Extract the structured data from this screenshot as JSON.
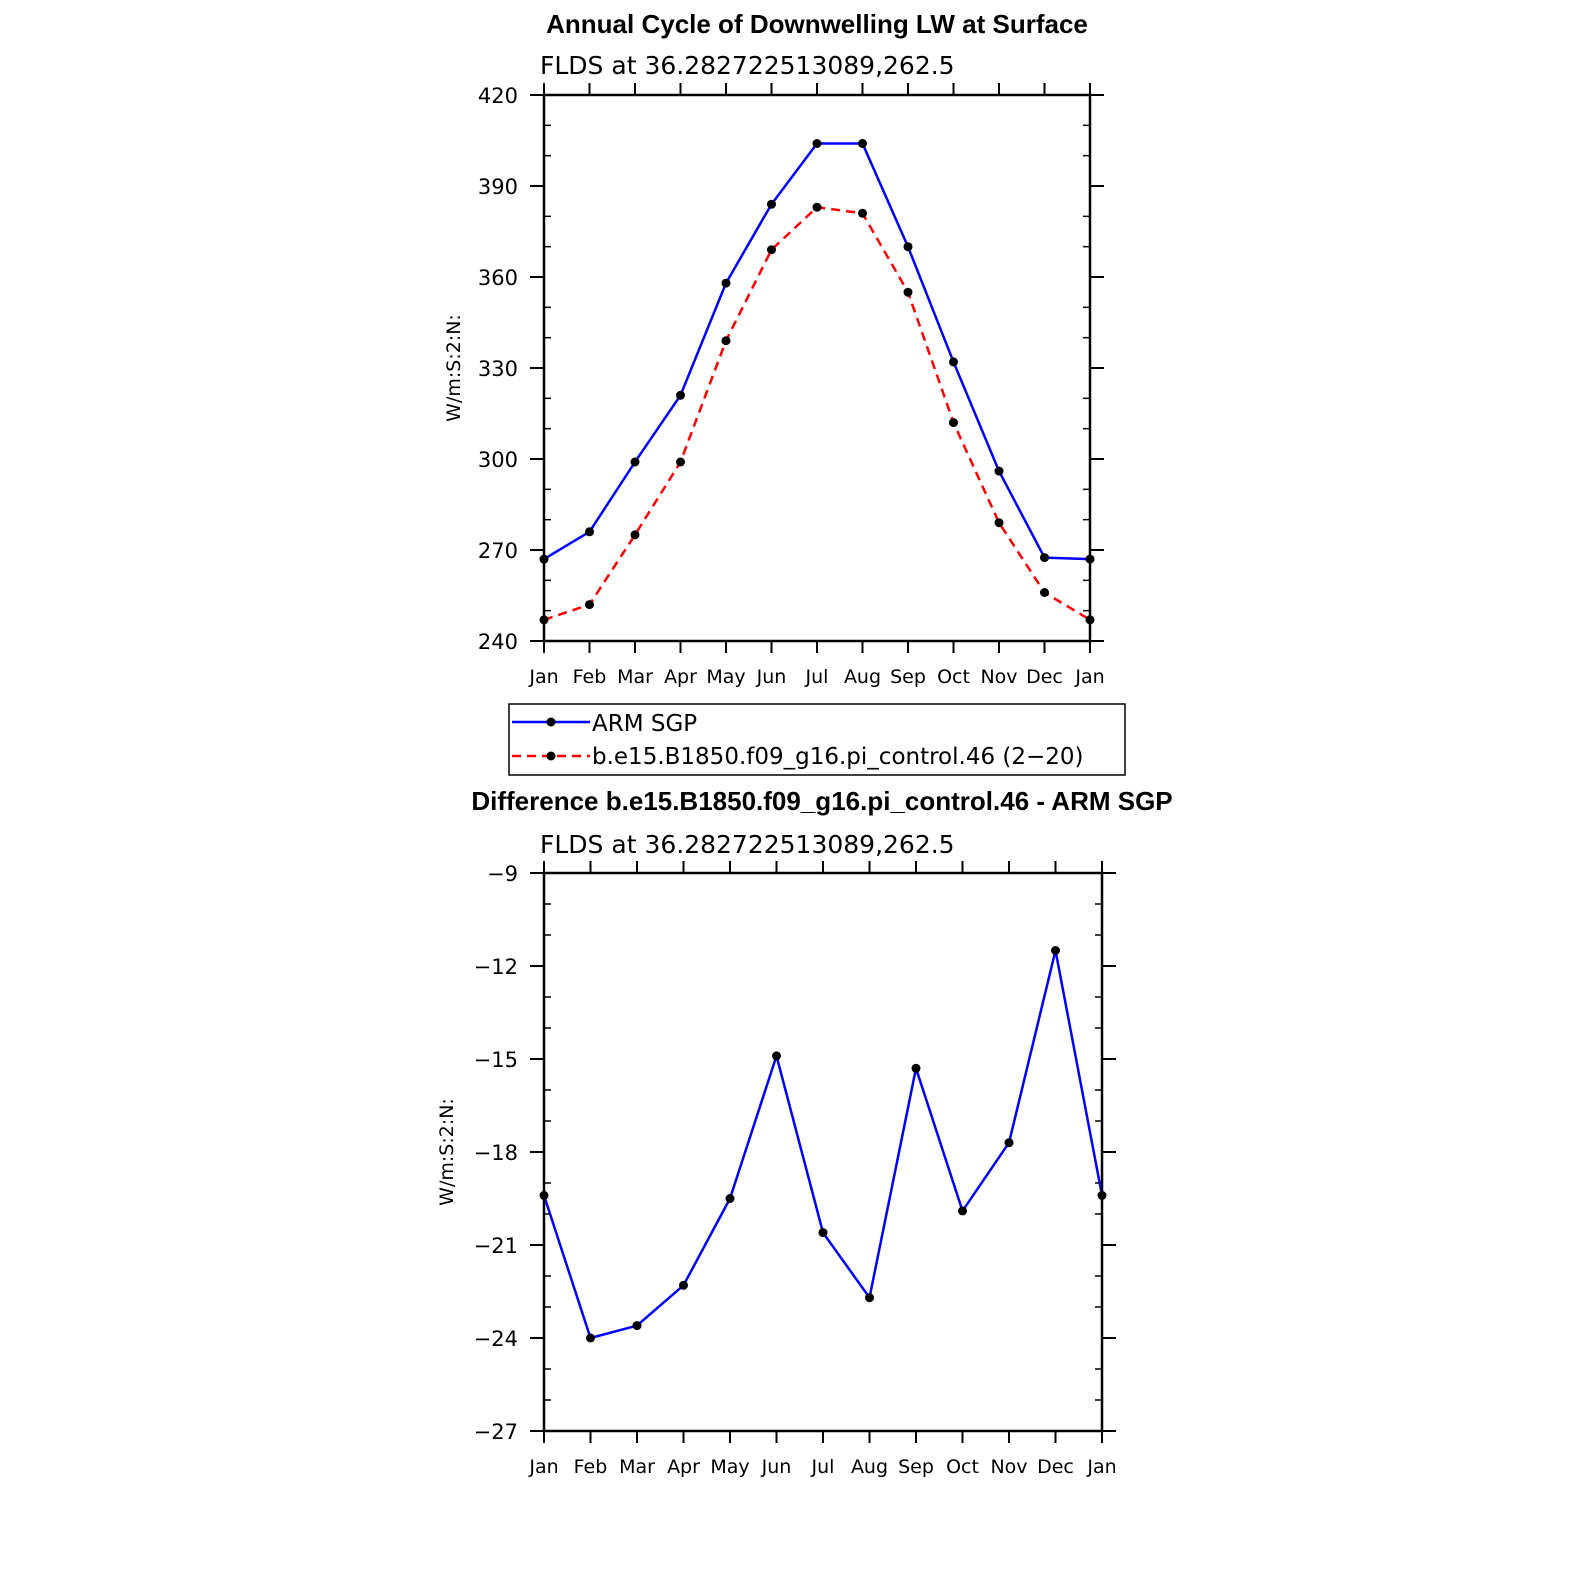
{
  "chart_data": [
    {
      "type": "line",
      "title": "Annual Cycle of Downwelling LW at Surface",
      "subtitle": "FLDS at 36.282722513089,262.5",
      "ylabel": "W/m:S:2:N:",
      "ylim": [
        240,
        420
      ],
      "yticks": [
        "240",
        "270",
        "300",
        "330",
        "360",
        "390",
        "420"
      ],
      "categories": [
        "Jan",
        "Feb",
        "Mar",
        "Apr",
        "May",
        "Jun",
        "Jul",
        "Aug",
        "Sep",
        "Oct",
        "Nov",
        "Dec",
        "Jan"
      ],
      "series": [
        {
          "name": "ARM SGP",
          "color": "#0000ff",
          "dashed": false,
          "values": [
            267,
            276,
            299,
            321,
            358,
            384,
            404,
            404,
            370,
            332,
            296,
            267.5,
            267
          ]
        },
        {
          "name": "b.e15.B1850.f09_g16.pi_control.46 (2−20)",
          "color": "#ff0000",
          "dashed": true,
          "values": [
            247,
            252,
            275,
            299,
            339,
            369,
            383,
            381,
            355,
            312,
            279,
            256,
            247
          ]
        }
      ],
      "legend": "below"
    },
    {
      "type": "line",
      "title": "Difference b.e15.B1850.f09_g16.pi_control.46 - ARM SGP",
      "subtitle": "FLDS at 36.282722513089,262.5",
      "ylabel": "W/m:S:2:N:",
      "ylim": [
        -27,
        -9
      ],
      "yticks": [
        "−27",
        "−24",
        "−21",
        "−18",
        "−15",
        "−12",
        "−9"
      ],
      "categories": [
        "Jan",
        "Feb",
        "Mar",
        "Apr",
        "May",
        "Jun",
        "Jul",
        "Aug",
        "Sep",
        "Oct",
        "Nov",
        "Dec",
        "Jan"
      ],
      "series": [
        {
          "color": "#0000ff",
          "dashed": false,
          "values": [
            -19.4,
            -24.0,
            -23.6,
            -22.3,
            -19.5,
            -14.9,
            -20.6,
            -22.7,
            -15.3,
            -19.9,
            -17.7,
            -11.5,
            -19.4
          ]
        }
      ]
    }
  ]
}
